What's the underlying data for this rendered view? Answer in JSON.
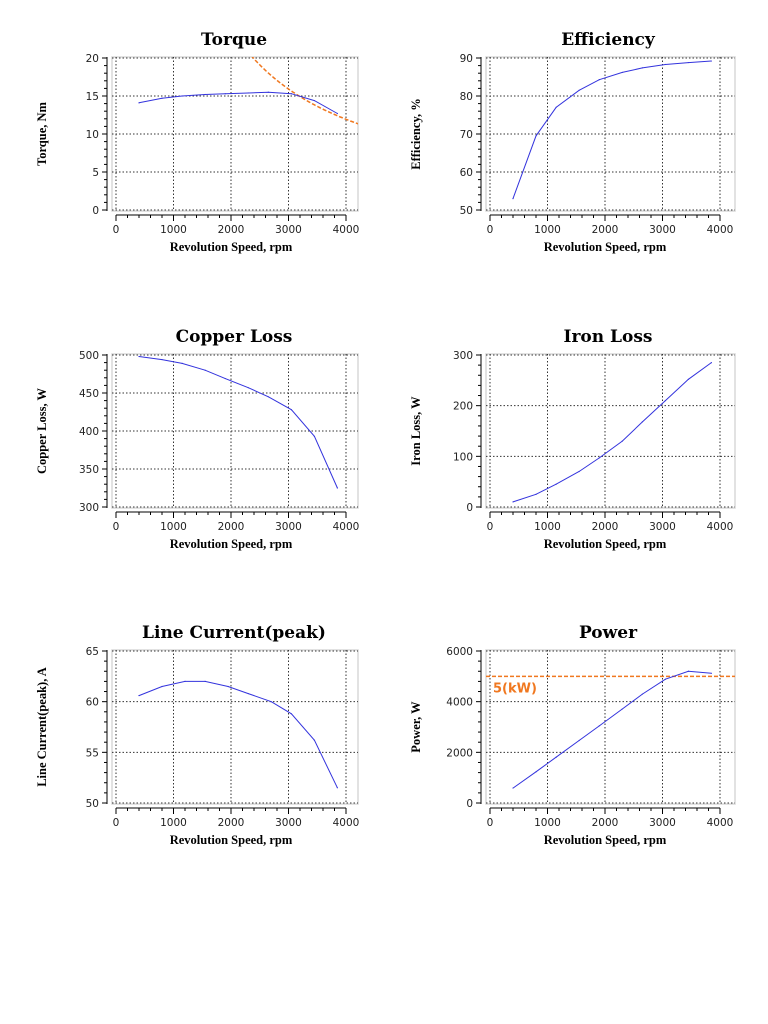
{
  "chart_data": [
    {
      "type": "line",
      "title": "Torque",
      "xlabel": "Revolution Speed, rpm",
      "ylabel": "Torque, Nm",
      "xlim": [
        0,
        4000
      ],
      "ylim": [
        0,
        20
      ],
      "xticks": [
        "0",
        "1000",
        "2000",
        "3000",
        "4000"
      ],
      "yticks": [
        "0",
        "5",
        "10",
        "15",
        "20"
      ],
      "grid": true,
      "x": [
        400,
        800,
        1150,
        1550,
        1900,
        2300,
        2650,
        3050,
        3450,
        3850
      ],
      "series": [
        {
          "values": [
            14.1,
            14.7,
            15.0,
            15.2,
            15.3,
            15.4,
            15.5,
            15.3,
            14.4,
            12.7
          ],
          "color": "#3333dd",
          "style": "solid"
        }
      ],
      "reference_curve": {
        "description_shown": false,
        "kind": "constant-power",
        "power_w": 5000,
        "x_range": [
          2350,
          4250
        ],
        "color": "#f07820",
        "style": "dashed"
      }
    },
    {
      "type": "line",
      "title": "Efficiency",
      "xlabel": "Revolution Speed, rpm",
      "ylabel": "Efficiency, %",
      "xlim": [
        0,
        4000
      ],
      "ylim": [
        50,
        90
      ],
      "xticks": [
        "0",
        "1000",
        "2000",
        "3000",
        "4000"
      ],
      "yticks": [
        "50",
        "60",
        "70",
        "80",
        "90"
      ],
      "grid": true,
      "x": [
        400,
        800,
        1150,
        1550,
        1900,
        2300,
        2650,
        3050,
        3450,
        3850
      ],
      "series": [
        {
          "values": [
            53,
            69.5,
            77,
            81.5,
            84.3,
            86.2,
            87.4,
            88.3,
            88.8,
            89.2
          ],
          "color": "#3333dd",
          "style": "solid"
        }
      ]
    },
    {
      "type": "line",
      "title": "Copper Loss",
      "xlabel": "Revolution Speed, rpm",
      "ylabel": "Copper Loss, W",
      "xlim": [
        0,
        4000
      ],
      "ylim": [
        300,
        500
      ],
      "xticks": [
        "0",
        "1000",
        "2000",
        "3000",
        "4000"
      ],
      "yticks": [
        "300",
        "350",
        "400",
        "450",
        "500"
      ],
      "grid": true,
      "x": [
        400,
        800,
        1150,
        1550,
        1900,
        2300,
        2650,
        3050,
        3450,
        3850
      ],
      "series": [
        {
          "values": [
            498,
            494,
            489,
            480,
            469,
            457,
            445,
            428,
            393,
            325
          ],
          "color": "#3333dd",
          "style": "solid"
        }
      ]
    },
    {
      "type": "line",
      "title": "Iron Loss",
      "xlabel": "Revolution Speed, rpm",
      "ylabel": "Iron Loss, W",
      "xlim": [
        0,
        4000
      ],
      "ylim": [
        0,
        300
      ],
      "xticks": [
        "0",
        "1000",
        "2000",
        "3000",
        "4000"
      ],
      "yticks": [
        "0",
        "100",
        "200",
        "300"
      ],
      "grid": true,
      "x": [
        400,
        800,
        1150,
        1550,
        1900,
        2300,
        2650,
        3050,
        3450,
        3850
      ],
      "series": [
        {
          "values": [
            10,
            25,
            45,
            70,
            97,
            130,
            168,
            210,
            252,
            285
          ],
          "color": "#3333dd",
          "style": "solid"
        }
      ]
    },
    {
      "type": "line",
      "title": "Line Current(peak)",
      "xlabel": "Revolution Speed, rpm",
      "ylabel": "Line Current(peak), A",
      "xlim": [
        0,
        4000
      ],
      "ylim": [
        50,
        65
      ],
      "xticks": [
        "0",
        "1000",
        "2000",
        "3000",
        "4000"
      ],
      "yticks": [
        "50",
        "55",
        "60",
        "65"
      ],
      "grid": true,
      "x": [
        400,
        800,
        1200,
        1550,
        1950,
        2300,
        2700,
        3050,
        3450,
        3850
      ],
      "series": [
        {
          "values": [
            60.6,
            61.5,
            62.0,
            62.0,
            61.5,
            60.8,
            60.0,
            58.8,
            56.2,
            51.5
          ],
          "color": "#3333dd",
          "style": "solid"
        }
      ]
    },
    {
      "type": "line",
      "title": "Power",
      "xlabel": "Revolution Speed, rpm",
      "ylabel": "Power, W",
      "xlim": [
        0,
        4000
      ],
      "ylim": [
        0,
        6000
      ],
      "xticks": [
        "0",
        "1000",
        "2000",
        "3000",
        "4000"
      ],
      "yticks": [
        "0",
        "2000",
        "4000",
        "6000"
      ],
      "grid": true,
      "x": [
        400,
        800,
        1150,
        1550,
        1900,
        2300,
        2650,
        3050,
        3450,
        3850
      ],
      "series": [
        {
          "values": [
            590,
            1230,
            1806,
            2467,
            3044,
            3709,
            4300,
            4886,
            5200,
            5120
          ],
          "color": "#3333dd",
          "style": "solid"
        }
      ],
      "reference_line": {
        "y": 5000,
        "label": "5(kW)",
        "color": "#f07820",
        "style": "dashed"
      }
    }
  ]
}
